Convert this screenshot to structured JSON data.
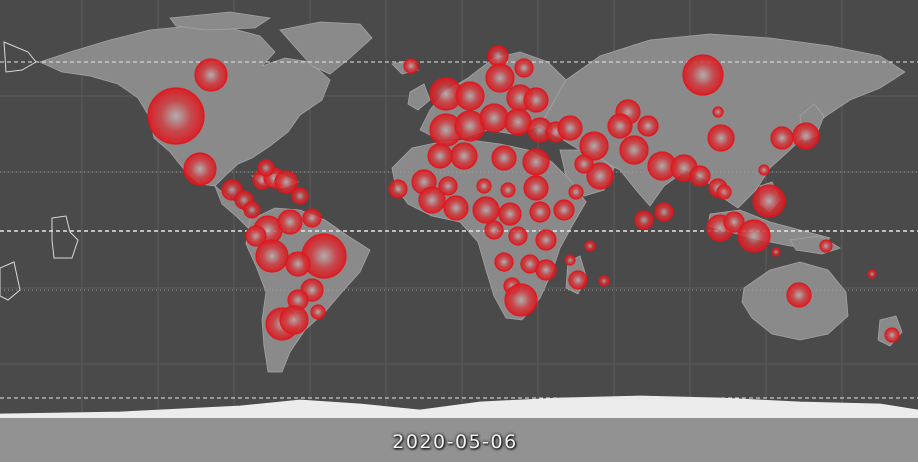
{
  "map": {
    "date_label": "2020-05-06",
    "colors": {
      "ocean": "#4a4a4a",
      "land": "#8a8a8a",
      "antarctica": "#ececec",
      "border": "#a4a4a4",
      "grid": "#5c5c5c",
      "dashed_line": "#e6e6e6",
      "bubble": "#e0151c"
    },
    "bubble_icon": "red-circle-marker",
    "bubble_count_note": ""
  }
}
